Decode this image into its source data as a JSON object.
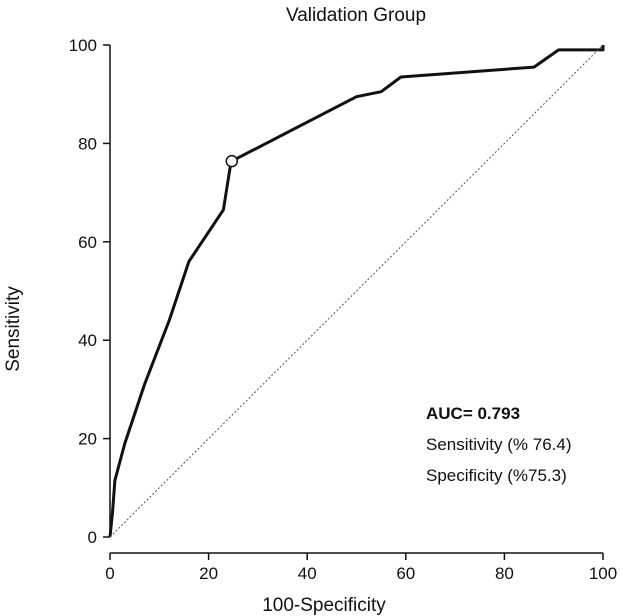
{
  "chart_data": {
    "type": "line",
    "title": "Validation Group",
    "xlabel": "100-Specificity",
    "ylabel": "Sensitivity",
    "xlim": [
      0,
      100
    ],
    "ylim": [
      0,
      100
    ],
    "xticks": [
      0,
      20,
      40,
      60,
      80,
      100
    ],
    "yticks": [
      0,
      20,
      40,
      60,
      80,
      100
    ],
    "grid": false,
    "series": [
      {
        "color": "#111111",
        "style": "solid",
        "points": [
          [
            0,
            0
          ],
          [
            0.5,
            5
          ],
          [
            1,
            11.5
          ],
          [
            3,
            19
          ],
          [
            7,
            31
          ],
          [
            12,
            44
          ],
          [
            16,
            56
          ],
          [
            23,
            66.5
          ],
          [
            24.5,
            76
          ],
          [
            24.7,
            76.4
          ],
          [
            50,
            89.5
          ],
          [
            55,
            90.5
          ],
          [
            59,
            93.5
          ],
          [
            86,
            95.5
          ],
          [
            91,
            99
          ],
          [
            100,
            99
          ],
          [
            100,
            100
          ]
        ]
      },
      {
        "color": "#555555",
        "style": "dotted",
        "points": [
          [
            0,
            0
          ],
          [
            100,
            100
          ]
        ]
      }
    ],
    "marker": {
      "x": 24.7,
      "y": 76.4,
      "style": "open-circle"
    },
    "annotations": {
      "auc": "AUC= 0.793",
      "sensitivity": "Sensitivity (% 76.4)",
      "specificity": "Specificity (%75.3)"
    }
  }
}
